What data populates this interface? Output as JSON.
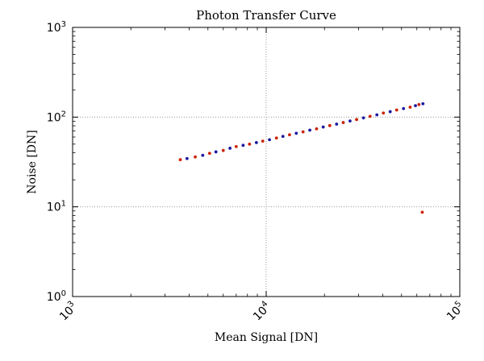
{
  "chart_data": {
    "type": "scatter",
    "title": "Photon Transfer Curve",
    "xlabel": "Mean Signal [DN]",
    "ylabel": "Noise [DN]",
    "x_scale": "log",
    "y_scale": "log",
    "xlim": [
      1000,
      100000
    ],
    "ylim": [
      1,
      1000
    ],
    "grid": true,
    "x_ticks": [
      {
        "value": 1000,
        "base": "10",
        "exp": "3"
      },
      {
        "value": 10000,
        "base": "10",
        "exp": "4"
      },
      {
        "value": 100000,
        "base": "10",
        "exp": "5"
      }
    ],
    "y_ticks": [
      {
        "value": 1,
        "base": "10",
        "exp": "0"
      },
      {
        "value": 10,
        "base": "10",
        "exp": "1"
      },
      {
        "value": 100,
        "base": "10",
        "exp": "2"
      },
      {
        "value": 1000,
        "base": "10",
        "exp": "3"
      }
    ],
    "series": [
      {
        "color": "#cc2200",
        "points": [
          [
            3600,
            33.5
          ],
          [
            4300,
            36.0
          ],
          [
            5100,
            39.5
          ],
          [
            6000,
            42.5
          ],
          [
            7000,
            47.0
          ],
          [
            8200,
            50.0
          ],
          [
            9600,
            54.0
          ],
          [
            11300,
            58.5
          ],
          [
            13200,
            63.5
          ],
          [
            15500,
            68.5
          ],
          [
            18200,
            74.0
          ],
          [
            21300,
            80.5
          ],
          [
            25000,
            87.0
          ],
          [
            29300,
            94.0
          ],
          [
            34400,
            102.0
          ],
          [
            40300,
            111.0
          ],
          [
            47200,
            120.0
          ],
          [
            55400,
            129.0
          ],
          [
            61500,
            138.0
          ],
          [
            64000,
            8.7
          ]
        ]
      },
      {
        "color": "#1a1aa0",
        "points": [
          [
            3900,
            34.5
          ],
          [
            4700,
            37.5
          ],
          [
            5500,
            41.0
          ],
          [
            6500,
            45.0
          ],
          [
            7600,
            48.5
          ],
          [
            8900,
            52.0
          ],
          [
            10400,
            56.0
          ],
          [
            12200,
            61.0
          ],
          [
            14300,
            66.0
          ],
          [
            16800,
            71.5
          ],
          [
            19700,
            77.5
          ],
          [
            23100,
            83.5
          ],
          [
            27100,
            90.5
          ],
          [
            31800,
            98.0
          ],
          [
            37300,
            106.0
          ],
          [
            43700,
            115.0
          ],
          [
            51200,
            124.5
          ],
          [
            59000,
            134.0
          ],
          [
            64500,
            141.0
          ]
        ]
      }
    ]
  }
}
